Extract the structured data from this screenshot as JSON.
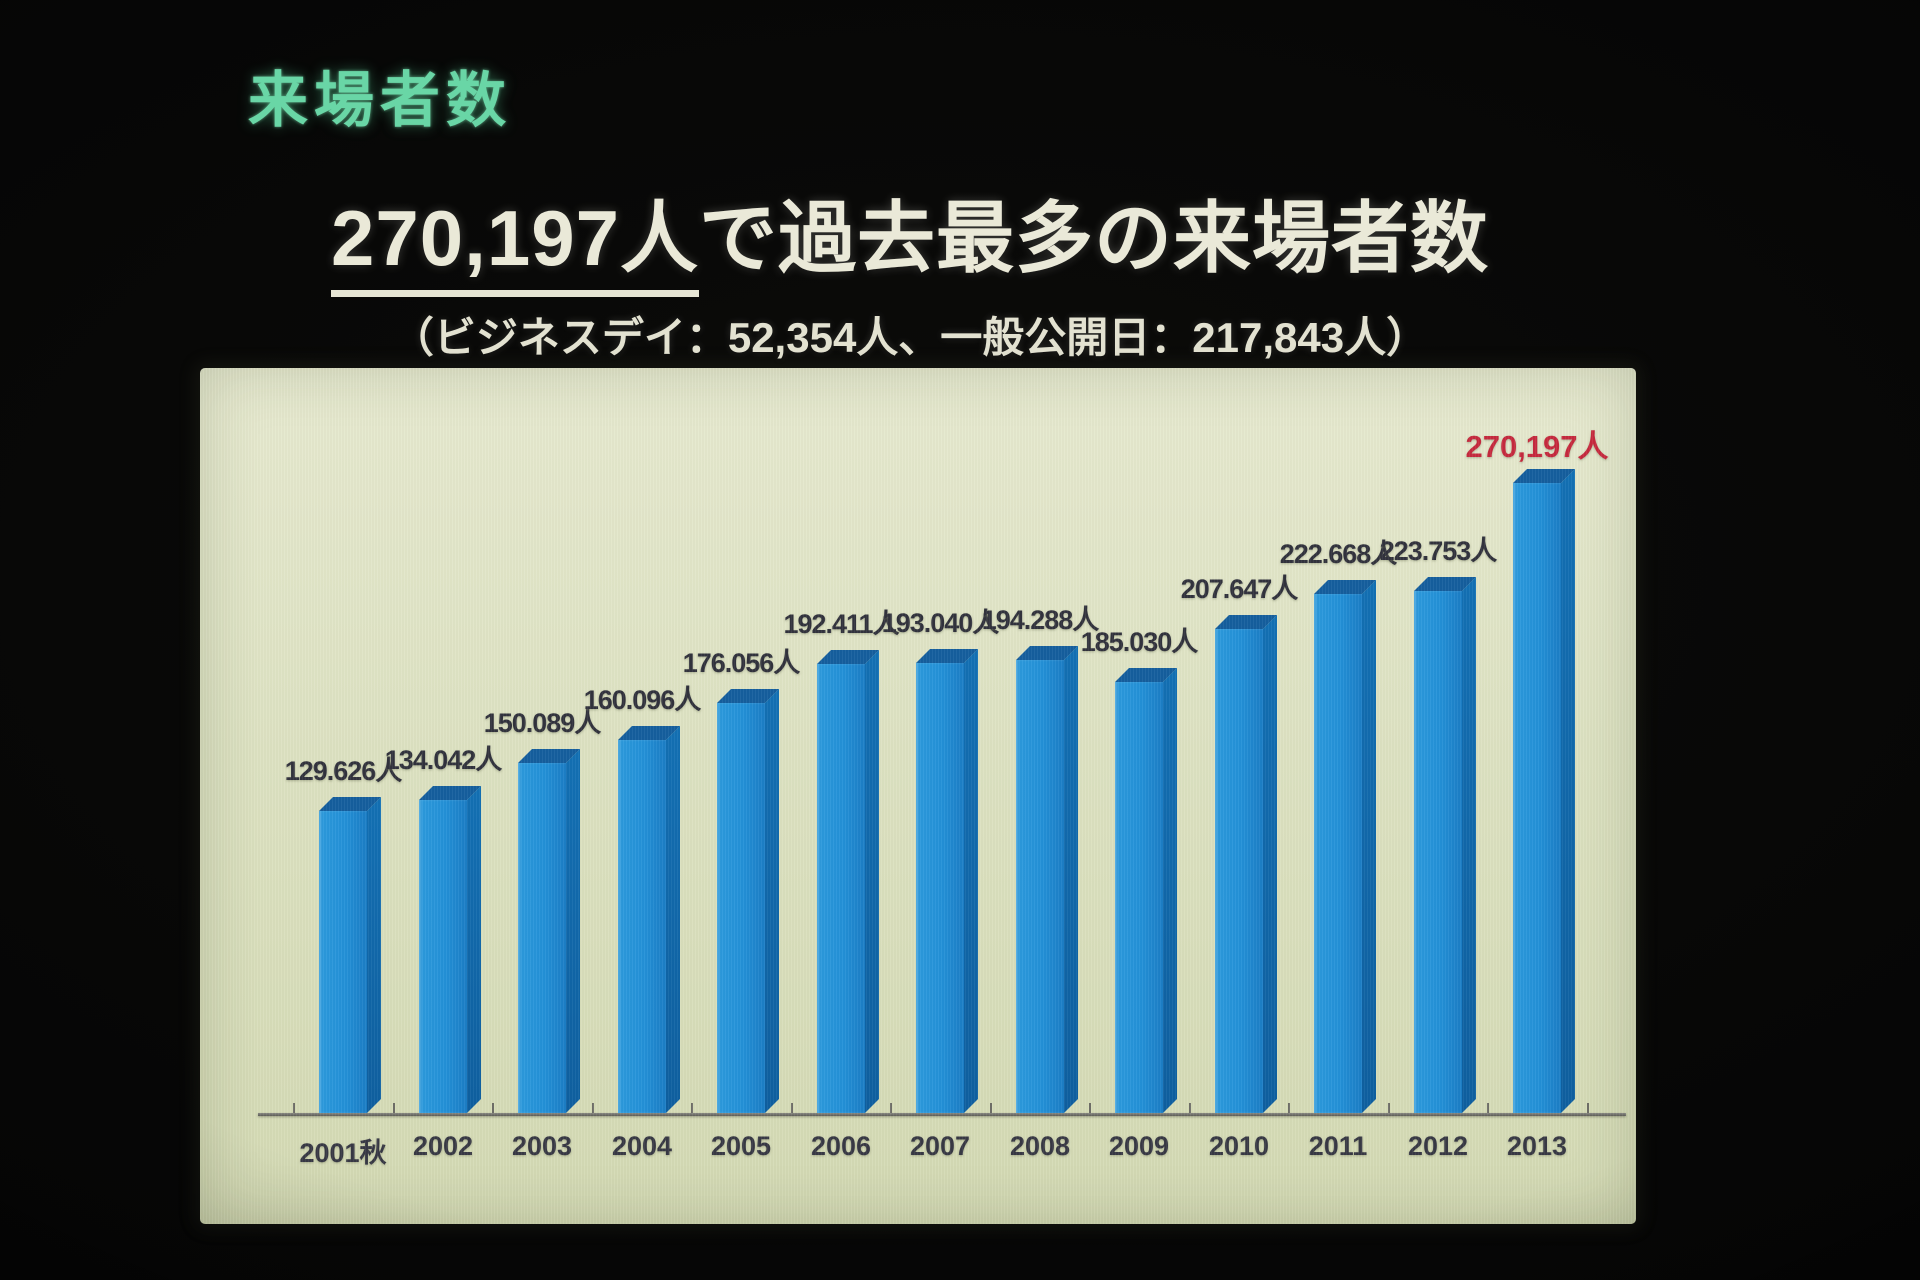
{
  "slide": {
    "section_title": "来場者数",
    "headline_highlight": "270,197人",
    "headline_rest": "で過去最多の来場者数",
    "subheadline": "（ビジネスデイ：52,354人、一般公開日：217,843人）"
  },
  "chart_data": {
    "type": "bar",
    "title": "来場者数（年別）",
    "categories": [
      "2001秋",
      "2002",
      "2003",
      "2004",
      "2005",
      "2006",
      "2007",
      "2008",
      "2009",
      "2010",
      "2011",
      "2012",
      "2013"
    ],
    "values": [
      129626,
      134042,
      150089,
      160096,
      176056,
      192411,
      193040,
      194288,
      185030,
      207647,
      222668,
      223753,
      270197
    ],
    "value_labels": [
      "129.626人",
      "134.042人",
      "150.089人",
      "160.096人",
      "176.056人",
      "192.411人",
      "193.040人",
      "194.288人",
      "185.030人",
      "207.647人",
      "222.668人",
      "223.753人",
      "270,197人"
    ],
    "highlight_index": 12,
    "xlabel": "",
    "ylabel": "",
    "ylim": [
      0,
      280000
    ],
    "grid": false,
    "legend": false,
    "colors": {
      "bar_front": "#2391d8",
      "bar_top": "#155f9e",
      "bar_side": "#1371b5",
      "label_dark": "#32333d",
      "highlight_red": "#c62a3e",
      "panel_bg": "#dde2c2",
      "accent_green": "#69d6a6",
      "text_cream": "#eae9d8"
    }
  }
}
